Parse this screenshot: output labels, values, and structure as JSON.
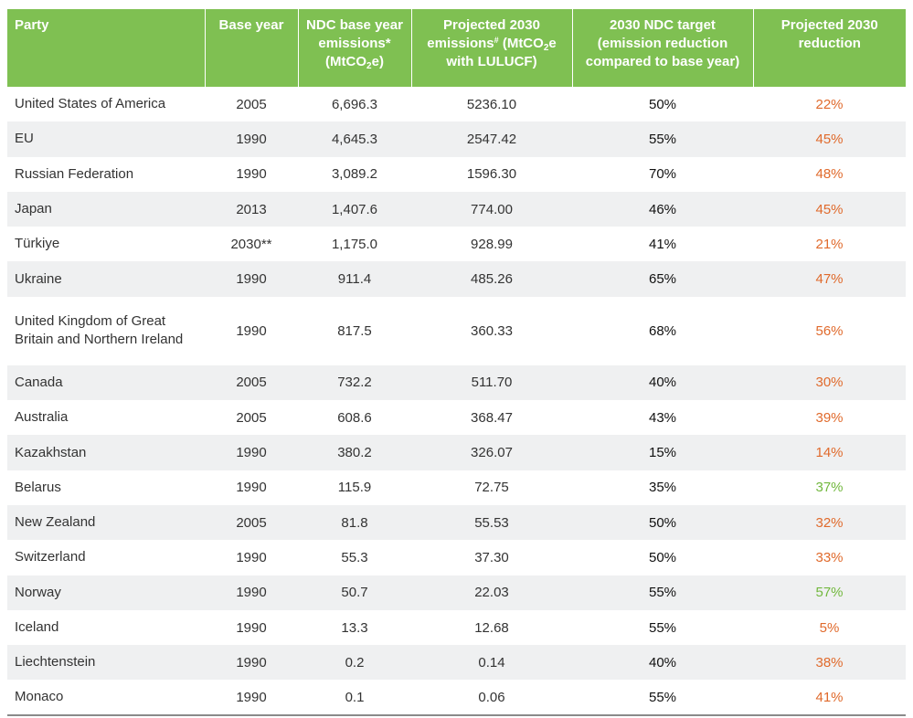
{
  "header": {
    "party": "Party",
    "base_year": "Base year",
    "ndc_base_a": "NDC base year emissions*",
    "ndc_base_b": "(MtCO",
    "ndc_base_sub": "2",
    "ndc_base_c": "e)",
    "proj_a": "Projected 2030 emissions",
    "proj_sup": "#",
    "proj_b": " (MtCO",
    "proj_sub": "2",
    "proj_c": "e with LULUCF)",
    "target": "2030 NDC target (emission reduction compared to base year)",
    "reduction": "Projected 2030 reduction"
  },
  "colors": {
    "header_bg": "#7fc052",
    "shortfall": "#e06a2c",
    "exceeds": "#72b83e",
    "stripe": "#eff0f1"
  },
  "rows": [
    {
      "party": "United States of America",
      "base_year": "2005",
      "base_emissions": "6,696.3",
      "projected": "5236.10",
      "target": "50%",
      "reduction": "22%",
      "status": "red"
    },
    {
      "party": "EU",
      "base_year": "1990",
      "base_emissions": "4,645.3",
      "projected": "2547.42",
      "target": "55%",
      "reduction": "45%",
      "status": "red"
    },
    {
      "party": "Russian Federation",
      "base_year": "1990",
      "base_emissions": "3,089.2",
      "projected": "1596.30",
      "target": "70%",
      "reduction": "48%",
      "status": "red"
    },
    {
      "party": "Japan",
      "base_year": "2013",
      "base_emissions": "1,407.6",
      "projected": "774.00",
      "target": "46%",
      "reduction": "45%",
      "status": "red"
    },
    {
      "party": "Türkiye",
      "base_year": "2030**",
      "base_emissions": "1,175.0",
      "projected": "928.99",
      "target": "41%",
      "reduction": "21%",
      "status": "red"
    },
    {
      "party": "Ukraine",
      "base_year": "1990",
      "base_emissions": "911.4",
      "projected": "485.26",
      "target": "65%",
      "reduction": "47%",
      "status": "red"
    },
    {
      "party": "United Kingdom of Great Britain and Northern Ireland",
      "base_year": "1990",
      "base_emissions": "817.5",
      "projected": "360.33",
      "target": "68%",
      "reduction": "56%",
      "status": "red"
    },
    {
      "party": "Canada",
      "base_year": "2005",
      "base_emissions": "732.2",
      "projected": "511.70",
      "target": "40%",
      "reduction": "30%",
      "status": "red"
    },
    {
      "party": "Australia",
      "base_year": "2005",
      "base_emissions": "608.6",
      "projected": "368.47",
      "target": "43%",
      "reduction": "39%",
      "status": "red"
    },
    {
      "party": "Kazakhstan",
      "base_year": "1990",
      "base_emissions": "380.2",
      "projected": "326.07",
      "target": "15%",
      "reduction": "14%",
      "status": "red"
    },
    {
      "party": "Belarus",
      "base_year": "1990",
      "base_emissions": "115.9",
      "projected": "72.75",
      "target": "35%",
      "reduction": "37%",
      "status": "green"
    },
    {
      "party": "New Zealand",
      "base_year": "2005",
      "base_emissions": "81.8",
      "projected": "55.53",
      "target": "50%",
      "reduction": "32%",
      "status": "red"
    },
    {
      "party": "Switzerland",
      "base_year": "1990",
      "base_emissions": "55.3",
      "projected": "37.30",
      "target": "50%",
      "reduction": "33%",
      "status": "red"
    },
    {
      "party": "Norway",
      "base_year": "1990",
      "base_emissions": "50.7",
      "projected": "22.03",
      "target": "55%",
      "reduction": "57%",
      "status": "green"
    },
    {
      "party": "Iceland",
      "base_year": "1990",
      "base_emissions": "13.3",
      "projected": "12.68",
      "target": "55%",
      "reduction": "5%",
      "status": "red"
    },
    {
      "party": "Liechtenstein",
      "base_year": "1990",
      "base_emissions": "0.2",
      "projected": "0.14",
      "target": "40%",
      "reduction": "38%",
      "status": "red"
    },
    {
      "party": "Monaco",
      "base_year": "1990",
      "base_emissions": "0.1",
      "projected": "0.06",
      "target": "55%",
      "reduction": "41%",
      "status": "red"
    }
  ]
}
